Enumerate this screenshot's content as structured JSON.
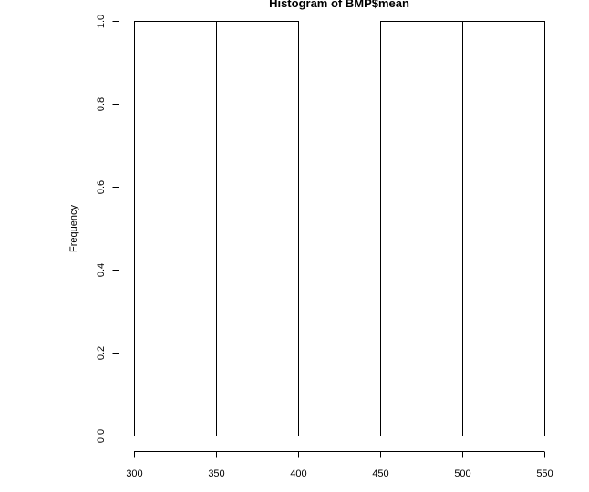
{
  "chart_data": {
    "type": "bar",
    "title": "Histogram of BMP$mean",
    "xlabel": "",
    "ylabel": "Frequency",
    "bins": [
      {
        "start": 300,
        "end": 350,
        "count": 1
      },
      {
        "start": 350,
        "end": 400,
        "count": 1
      },
      {
        "start": 400,
        "end": 450,
        "count": 0
      },
      {
        "start": 450,
        "end": 500,
        "count": 1
      },
      {
        "start": 500,
        "end": 550,
        "count": 1
      }
    ],
    "xlim": [
      300,
      550
    ],
    "ylim": [
      0,
      1.0
    ],
    "xticks": [
      "300",
      "350",
      "400",
      "450",
      "500",
      "550"
    ],
    "yticks": [
      "0.0",
      "0.2",
      "0.4",
      "0.6",
      "0.8",
      "1.0"
    ],
    "grid": false,
    "colors": {
      "bar_fill": "#ffffff",
      "bar_stroke": "#000000"
    }
  }
}
